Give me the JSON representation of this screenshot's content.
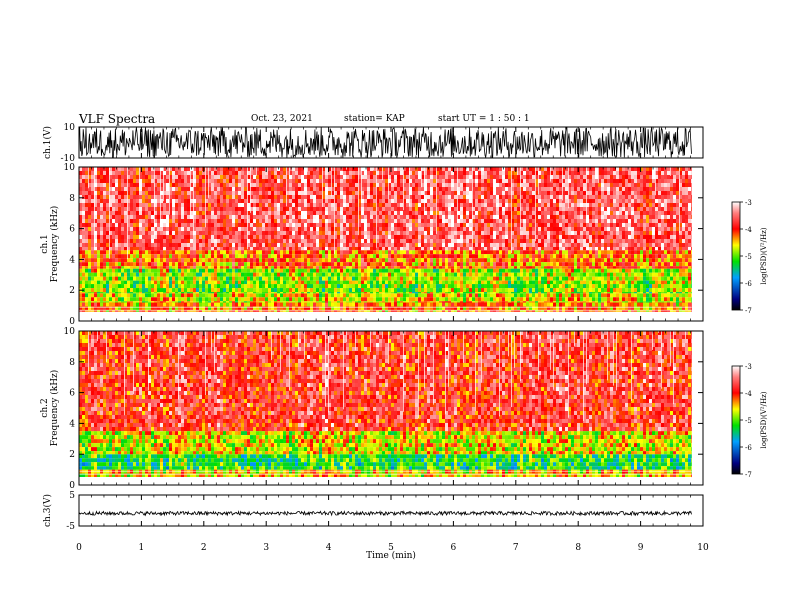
{
  "header": {
    "title": "VLF Spectra",
    "date": "Oct. 23, 2021",
    "station": "station= KAP",
    "start": "start  UT =   1 : 50 : 1"
  },
  "chart_data": [
    {
      "type": "line",
      "panel": "ch1-waveform",
      "ylabel": "ch.1(V)",
      "ylim": [
        -10,
        10
      ],
      "yticks": [
        "10",
        "-10"
      ],
      "xlim": [
        0,
        10
      ],
      "data_extent_min": [
        0,
        9.82
      ],
      "amplitude_range": [
        -10,
        10
      ],
      "color": "#000000"
    },
    {
      "type": "heatmap",
      "panel": "ch1-spectrogram",
      "ylabel": "ch.1\nFrequency (kHz)",
      "ylim": [
        0,
        10
      ],
      "yticks": [
        "0",
        "2",
        "4",
        "6",
        "8",
        "10"
      ],
      "xlim": [
        0,
        10
      ],
      "data_extent_min": [
        0,
        9.82
      ],
      "dominant_bands_khz": [
        {
          "from": 0.6,
          "to": 1.2,
          "level": -4.3
        },
        {
          "from": 1.2,
          "to": 1.8,
          "level": -4.6
        },
        {
          "from": 1.8,
          "to": 2.4,
          "level": -4.9
        },
        {
          "from": 2.4,
          "to": 3.4,
          "level": -4.8
        },
        {
          "from": 3.4,
          "to": 4.6,
          "level": -4.2
        },
        {
          "from": 4.6,
          "to": 10,
          "level": -3.6
        }
      ],
      "colorbar": {
        "label": "log(PSD)(V²/Hz)",
        "ticks": [
          "-3",
          "-4",
          "-5",
          "-6",
          "-7"
        ],
        "range": [
          -7,
          -3
        ]
      }
    },
    {
      "type": "heatmap",
      "panel": "ch2-spectrogram",
      "ylabel": "ch.2\nFrequency (kHz)",
      "ylim": [
        0,
        10
      ],
      "yticks": [
        "0",
        "2",
        "4",
        "6",
        "8",
        "10"
      ],
      "xlim": [
        0,
        10
      ],
      "data_extent_min": [
        0,
        9.82
      ],
      "dominant_bands_khz": [
        {
          "from": 0.5,
          "to": 1.0,
          "level": -4.5
        },
        {
          "from": 1.0,
          "to": 2.0,
          "level": -5.2
        },
        {
          "from": 2.0,
          "to": 3.5,
          "level": -4.6
        },
        {
          "from": 3.5,
          "to": 10,
          "level": -3.8
        }
      ],
      "colorbar": {
        "label": "log(PSD)(V²/Hz)",
        "ticks": [
          "-3",
          "-4",
          "-5",
          "-6",
          "-7"
        ],
        "range": [
          -7,
          -3
        ]
      }
    },
    {
      "type": "line",
      "panel": "ch3-waveform",
      "ylabel": "ch.3(V)",
      "ylim": [
        -5,
        5
      ],
      "yticks": [
        "5",
        "-5"
      ],
      "xlim": [
        0,
        10
      ],
      "data_extent_min": [
        0,
        9.82
      ],
      "amplitude_range": [
        -1.5,
        -0.3
      ],
      "color": "#000000"
    }
  ],
  "xaxis": {
    "label": "Time (min)",
    "ticks": [
      "0",
      "1",
      "2",
      "3",
      "4",
      "5",
      "6",
      "7",
      "8",
      "9",
      "10"
    ]
  },
  "colors": {
    "low": "#000080",
    "mid_low": "#00a0ff",
    "mid": "#00e000",
    "mid_high": "#ffff00",
    "high": "#ff0000",
    "top": "#ffffff"
  }
}
